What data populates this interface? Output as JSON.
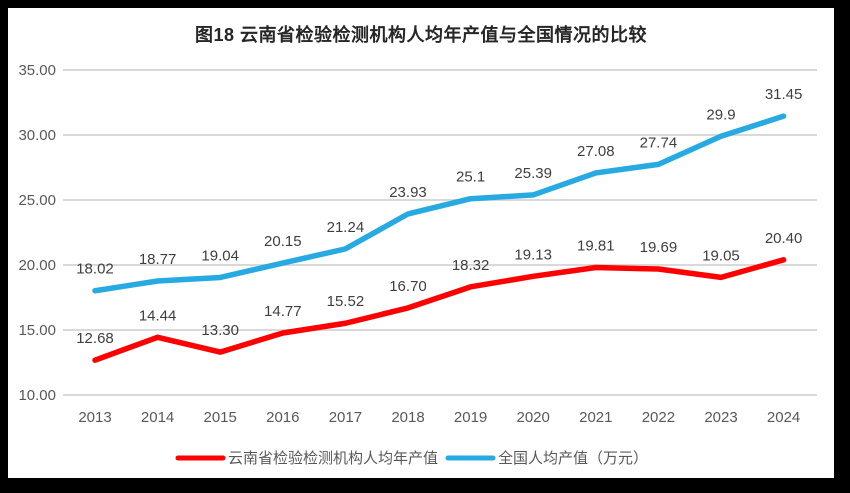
{
  "chart_data": {
    "type": "line",
    "title": "图18 云南省检验检测机构人均年产值与全国情况的比较",
    "xlabel": "",
    "ylabel": "",
    "ylim": [
      10,
      35
    ],
    "grid": true,
    "legend_position": "bottom",
    "categories": [
      "2013",
      "2014",
      "2015",
      "2016",
      "2017",
      "2018",
      "2019",
      "2020",
      "2021",
      "2022",
      "2023",
      "2024"
    ],
    "y_ticks": [
      "35.00",
      "30.00",
      "25.00",
      "20.00",
      "15.00",
      "10.00"
    ],
    "series": [
      {
        "name": "云南省检验检测机构人均年产值",
        "color": "#ff0000",
        "values": [
          12.68,
          14.44,
          13.3,
          14.77,
          15.52,
          16.7,
          18.32,
          19.13,
          19.81,
          19.69,
          19.05,
          20.4
        ],
        "labels": [
          "12.68",
          "14.44",
          "13.30",
          "14.77",
          "15.52",
          "16.70",
          "18.32",
          "19.13",
          "19.81",
          "19.69",
          "19.05",
          "20.40"
        ]
      },
      {
        "name": "全国人均产值（万元）",
        "color": "#27aae1",
        "values": [
          18.02,
          18.77,
          19.04,
          20.15,
          21.24,
          23.93,
          25.1,
          25.39,
          27.08,
          27.74,
          29.9,
          31.45
        ],
        "labels": [
          "18.02",
          "18.77",
          "19.04",
          "20.15",
          "21.24",
          "23.93",
          "25.1",
          "25.39",
          "27.08",
          "27.74",
          "29.9",
          "31.45"
        ]
      }
    ],
    "colors": {
      "gridline": "#d9d9d9",
      "axis_text": "#595959",
      "data_label_text": "#3f3f3f",
      "legend_text": "#595959",
      "background": "#ffffff",
      "frame_border": "#000000"
    }
  }
}
